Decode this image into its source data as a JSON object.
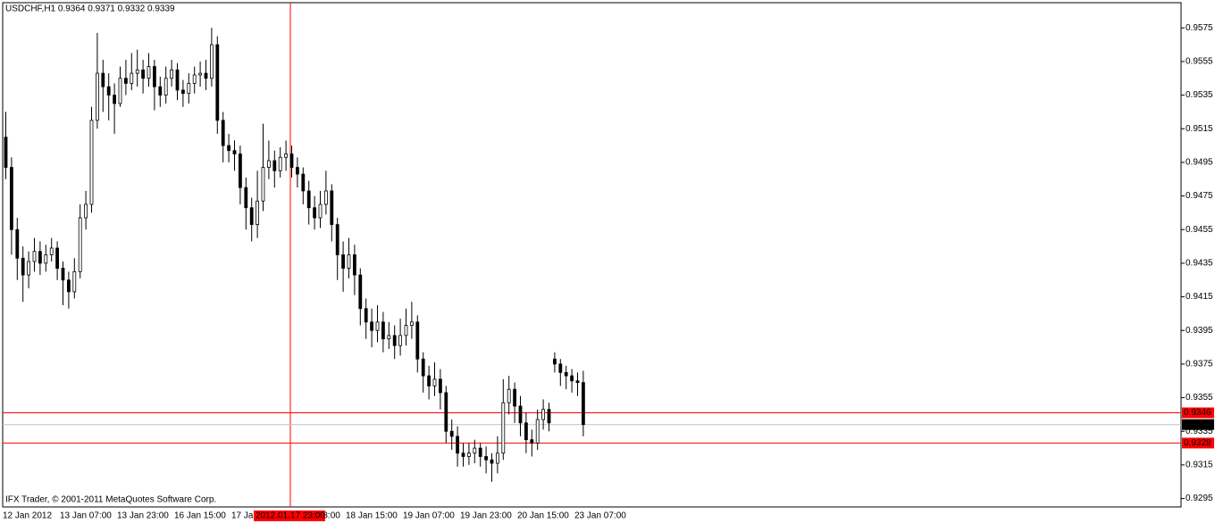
{
  "chart_data": {
    "type": "candlestick",
    "title": "USDCHF,H1  0.9364 0.9371 0.9332 0.9339",
    "footer": "IFX Trader, © 2001-2011 MetaQuotes Software Corp.",
    "categories": [
      "12 Jan 2012",
      null,
      null,
      null,
      null,
      null,
      null,
      null,
      null,
      null,
      "13 Jan 07:00",
      null,
      null,
      null,
      null,
      null,
      null,
      null,
      null,
      null,
      "13 Jan 23:00",
      null,
      null,
      null,
      null,
      null,
      null,
      null,
      null,
      null,
      "16 Jan 15:00",
      null,
      null,
      null,
      null,
      null,
      null,
      null,
      null,
      null,
      "17 Jan 07:00",
      null,
      null,
      null,
      null,
      null,
      null,
      null,
      null,
      null,
      "17 Jan 23:00",
      null,
      null,
      null,
      null,
      null,
      null,
      null,
      null,
      null,
      "18 Jan 15:00",
      null,
      null,
      null,
      null,
      null,
      null,
      null,
      null,
      null,
      "19 Jan 07:00",
      null,
      null,
      null,
      null,
      null,
      null,
      null,
      null,
      null,
      "19 Jan 23:00",
      null,
      null,
      null,
      null,
      null,
      null,
      null,
      null,
      null,
      "20 Jan 15:00",
      null,
      null,
      null,
      null,
      null,
      null,
      null,
      null,
      null,
      "23 Jan 07:00",
      null
    ],
    "open": [
      0.951,
      0.9492,
      0.9455,
      0.9438,
      0.9428,
      0.9436,
      0.9442,
      0.9435,
      0.944,
      0.9444,
      0.9432,
      0.9425,
      0.9418,
      0.943,
      0.9462,
      0.947,
      0.952,
      0.9548,
      0.954,
      0.9535,
      0.953,
      0.9545,
      0.9542,
      0.9548,
      0.955,
      0.9545,
      0.9552,
      0.954,
      0.9535,
      0.9545,
      0.955,
      0.9538,
      0.9536,
      0.9542,
      0.9547,
      0.9548,
      0.9545,
      0.9565,
      0.952,
      0.9505,
      0.9502,
      0.95,
      0.948,
      0.9468,
      0.9458,
      0.9472,
      0.9492,
      0.9496,
      0.949,
      0.9498,
      0.95,
      0.9492,
      0.9488,
      0.9478,
      0.9468,
      0.9462,
      0.947,
      0.9478,
      0.9458,
      0.944,
      0.9432,
      0.944,
      0.9428,
      0.9408,
      0.94,
      0.9395,
      0.94,
      0.939,
      0.9392,
      0.9386,
      0.9392,
      0.9398,
      0.94,
      0.9378,
      0.9368,
      0.9362,
      0.9366,
      0.9358,
      0.9335,
      0.9332,
      0.9322,
      0.932,
      0.9322,
      0.9325,
      0.932,
      0.9318,
      0.9316,
      0.9322,
      0.9352,
      0.936,
      0.935,
      0.934,
      0.933,
      0.9328,
      0.9342,
      0.9348,
      0.9378,
      0.9375,
      0.937,
      0.9368,
      0.9365,
      0.9364
    ],
    "high": [
      0.9525,
      0.9498,
      0.9462,
      0.9445,
      0.9442,
      0.945,
      0.9448,
      0.9446,
      0.945,
      0.9448,
      0.9436,
      0.943,
      0.9438,
      0.947,
      0.9478,
      0.9528,
      0.9572,
      0.9556,
      0.9548,
      0.9542,
      0.9552,
      0.9556,
      0.956,
      0.9562,
      0.9556,
      0.956,
      0.9556,
      0.9546,
      0.9552,
      0.9556,
      0.9554,
      0.9544,
      0.9548,
      0.9552,
      0.9555,
      0.9556,
      0.9575,
      0.957,
      0.9525,
      0.9512,
      0.9508,
      0.9505,
      0.9486,
      0.9474,
      0.949,
      0.9518,
      0.9508,
      0.9502,
      0.9504,
      0.9508,
      0.9505,
      0.9498,
      0.9492,
      0.9484,
      0.9475,
      0.9478,
      0.949,
      0.9482,
      0.9462,
      0.9448,
      0.945,
      0.9446,
      0.9432,
      0.9414,
      0.9408,
      0.941,
      0.9406,
      0.94,
      0.9398,
      0.9402,
      0.9408,
      0.9412,
      0.9404,
      0.9382,
      0.9374,
      0.9376,
      0.9372,
      0.9362,
      0.9342,
      0.9338,
      0.9328,
      0.9328,
      0.933,
      0.9328,
      0.9326,
      0.9322,
      0.9332,
      0.9366,
      0.9368,
      0.9364,
      0.9356,
      0.9346,
      0.9336,
      0.9348,
      0.9354,
      0.9352,
      0.9382,
      0.9378,
      0.9374,
      0.9372,
      0.937,
      0.9371
    ],
    "low": [
      0.9485,
      0.944,
      0.9425,
      0.9412,
      0.942,
      0.943,
      0.9428,
      0.943,
      0.9436,
      0.9425,
      0.941,
      0.9408,
      0.9414,
      0.9426,
      0.9455,
      0.9465,
      0.9515,
      0.9525,
      0.952,
      0.9512,
      0.9528,
      0.9535,
      0.9538,
      0.954,
      0.9536,
      0.954,
      0.9526,
      0.9528,
      0.953,
      0.954,
      0.9532,
      0.9528,
      0.953,
      0.9536,
      0.954,
      0.9538,
      0.954,
      0.9512,
      0.9495,
      0.9495,
      0.949,
      0.947,
      0.9455,
      0.9448,
      0.945,
      0.9466,
      0.9485,
      0.948,
      0.9486,
      0.949,
      0.9486,
      0.948,
      0.947,
      0.9458,
      0.9455,
      0.9456,
      0.9464,
      0.9448,
      0.9425,
      0.9418,
      0.9426,
      0.9416,
      0.9398,
      0.939,
      0.9385,
      0.9388,
      0.9382,
      0.9384,
      0.9378,
      0.938,
      0.9386,
      0.939,
      0.937,
      0.9358,
      0.9354,
      0.9356,
      0.9348,
      0.9328,
      0.9324,
      0.9314,
      0.9314,
      0.9315,
      0.9316,
      0.9314,
      0.931,
      0.9305,
      0.931,
      0.9318,
      0.9345,
      0.934,
      0.9332,
      0.9322,
      0.932,
      0.9324,
      0.9336,
      0.9335,
      0.937,
      0.9362,
      0.936,
      0.9358,
      0.9356,
      0.9332
    ],
    "close": [
      0.9492,
      0.9455,
      0.9438,
      0.9428,
      0.9436,
      0.9442,
      0.9435,
      0.944,
      0.9444,
      0.9432,
      0.9425,
      0.9418,
      0.943,
      0.9462,
      0.947,
      0.952,
      0.9548,
      0.954,
      0.9535,
      0.953,
      0.9545,
      0.9542,
      0.9548,
      0.955,
      0.9545,
      0.9552,
      0.954,
      0.9535,
      0.9545,
      0.955,
      0.9538,
      0.9536,
      0.9542,
      0.9547,
      0.9548,
      0.9545,
      0.9565,
      0.952,
      0.9505,
      0.9502,
      0.95,
      0.948,
      0.9468,
      0.9458,
      0.9472,
      0.9492,
      0.9496,
      0.949,
      0.9498,
      0.95,
      0.9492,
      0.9488,
      0.9478,
      0.9468,
      0.9462,
      0.947,
      0.9478,
      0.9458,
      0.944,
      0.9432,
      0.944,
      0.9428,
      0.9408,
      0.94,
      0.9395,
      0.94,
      0.939,
      0.9392,
      0.9386,
      0.9392,
      0.9398,
      0.94,
      0.9378,
      0.9368,
      0.9362,
      0.9366,
      0.9358,
      0.9335,
      0.9332,
      0.9322,
      0.932,
      0.9322,
      0.9325,
      0.932,
      0.9318,
      0.9316,
      0.9322,
      0.9352,
      0.936,
      0.935,
      0.934,
      0.933,
      0.9328,
      0.9342,
      0.9348,
      0.934,
      0.9375,
      0.937,
      0.9368,
      0.9365,
      0.9364,
      0.9339
    ],
    "up_color": "#ffffff",
    "down_color": "#000000",
    "wick_color": "#000000",
    "ylim": [
      0.929,
      0.959
    ],
    "yticks": [
      0.9575,
      0.9555,
      0.9535,
      0.9515,
      0.9495,
      0.9475,
      0.9455,
      0.9435,
      0.9415,
      0.9395,
      0.9375,
      0.9355,
      0.9335,
      0.9315,
      0.9295
    ],
    "hlines": [
      {
        "value": 0.9346,
        "color": "#ff0000"
      },
      {
        "value": 0.9328,
        "color": "#ff0000"
      }
    ],
    "price_line": {
      "value": 0.9339,
      "color": "#c0c0c0"
    },
    "crosshair": {
      "label": "2012.01.17 23:00",
      "color": "#ff0000"
    }
  }
}
